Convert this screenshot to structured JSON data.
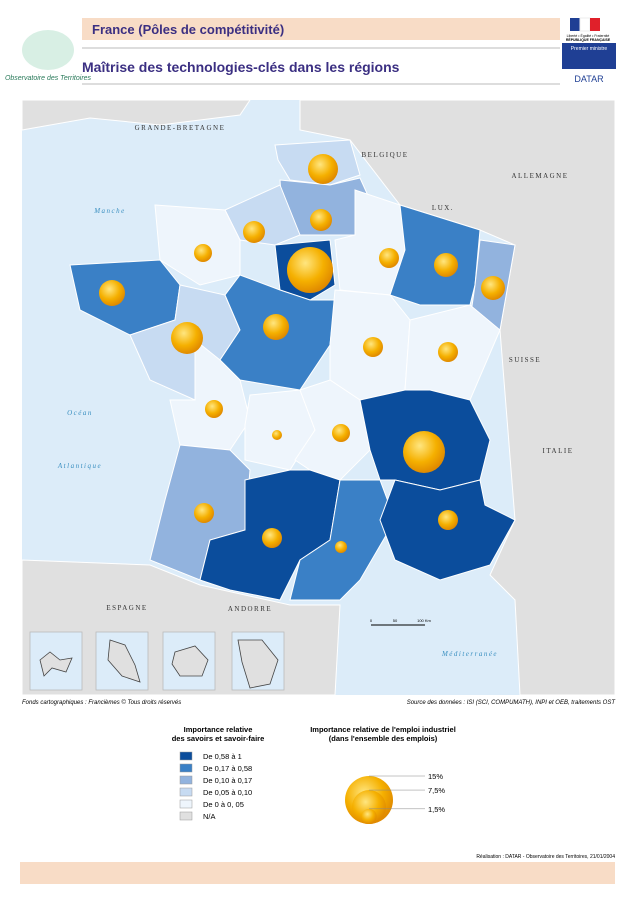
{
  "header": {
    "title": "France (Pôles de compétitivité)",
    "subtitle": "Maîtrise des technologies-clés dans les régions",
    "logo_left": "Observatoire des Territoires",
    "logo_motto": "Liberté • Égalité • Fraternité",
    "logo_republic": "RÉPUBLIQUE FRANÇAISE",
    "logo_ministry": "Premier ministre",
    "logo_datar": "DATAR"
  },
  "map": {
    "labels": [
      "GRANDE-BRETAGNE",
      "BELGIQUE",
      "ALLEMAGNE",
      "LUX.",
      "SUISSE",
      "ITALIE",
      "ESPAGNE",
      "ANDORRE"
    ],
    "seas": [
      "Manche",
      "Océan",
      "Atlantique",
      "Méditerranée"
    ],
    "scale": [
      "0",
      "50",
      "100 Km"
    ]
  },
  "sources": {
    "left": "Fonds cartographiques : Francièmes © Tous droits réservés",
    "right": "Source des données : ISI (SCI, COMPUMATH), INPI et OEB, traitements OST"
  },
  "class_legend": {
    "title": [
      "Importance relative",
      "des savoirs et savoir-faire"
    ],
    "items": [
      {
        "label": "De 0,58 à 1",
        "color": "#0b4d9c"
      },
      {
        "label": "De 0,17 à 0,58",
        "color": "#3a80c6"
      },
      {
        "label": "De 0,10 à 0,17",
        "color": "#92b3de"
      },
      {
        "label": "De 0,05 à 0,10",
        "color": "#c7dbf2"
      },
      {
        "label": "De 0 à 0, 05",
        "color": "#eef5fc"
      },
      {
        "label": "N/A",
        "color": "#e0e0e0"
      }
    ]
  },
  "size_legend": {
    "title": [
      "Importance relative de l'emploi industriel",
      "(dans l'ensemble des emplois)"
    ],
    "items": [
      {
        "value": 15,
        "label": "15%"
      },
      {
        "value": 7.5,
        "label": "7,5%"
      },
      {
        "value": 1.5,
        "label": "1,5%"
      }
    ]
  },
  "footer": {
    "credit": "Réalisation : DATAR - Observatoire des Territoires, 21/01/2004"
  }
}
